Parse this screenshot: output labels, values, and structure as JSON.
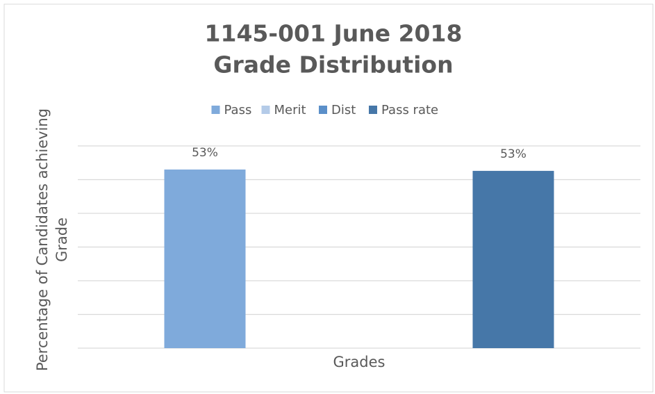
{
  "chart_data": {
    "type": "bar",
    "title": [
      "1145-001 June 2018",
      "Grade Distribution"
    ],
    "x_label": "Grades",
    "y_label": [
      "Percentage of Candidates achieving",
      "Grade"
    ],
    "categories": [
      null
    ],
    "series": [
      {
        "name": "Pass",
        "color": "#7faadb",
        "values": [
          53
        ],
        "value_labels": [
          "53%"
        ]
      },
      {
        "name": "Merit",
        "color": "#b4cbe8",
        "values": [
          null
        ]
      },
      {
        "name": "Dist",
        "color": "#5b8fc9",
        "values": [
          null
        ]
      },
      {
        "name": "Pass rate",
        "color": "#4677a8",
        "values": [
          52.6
        ],
        "value_labels": [
          "53%"
        ]
      }
    ],
    "ylim": [
      0,
      60
    ],
    "yticks": [
      0,
      10,
      20,
      30,
      40,
      50,
      60
    ],
    "grid": true,
    "legend": "top"
  }
}
